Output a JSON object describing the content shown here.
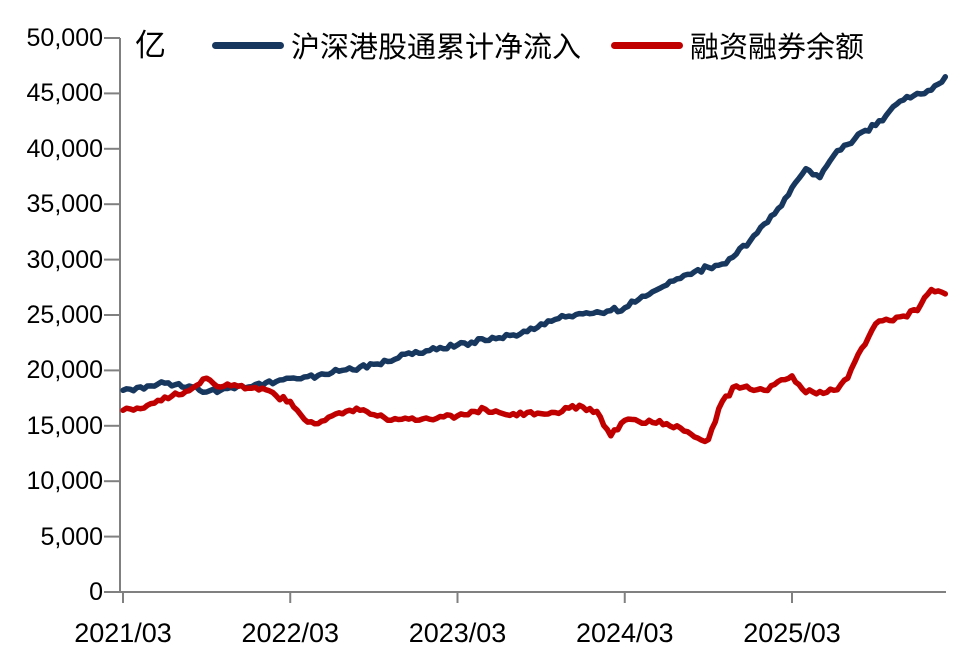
{
  "chart_data": {
    "type": "line",
    "title": "",
    "unit": "亿",
    "grid": false,
    "legend_position": "top",
    "axis_color": "#808080",
    "text_color": "#000000",
    "ylim": [
      0,
      50000
    ],
    "y_ticks": [
      0,
      5000,
      10000,
      15000,
      20000,
      25000,
      30000,
      35000,
      40000,
      45000,
      50000
    ],
    "x_start_label": "2021/03",
    "x_tick_labels": [
      "2021/03",
      "2022/03",
      "2023/03",
      "2024/03",
      "2025/03"
    ],
    "x_tick_month_offsets": [
      0,
      12,
      24,
      36,
      48
    ],
    "sampling": "monthly",
    "series": [
      {
        "name": "沪深港股通累计净流入",
        "color": "#17375e",
        "values": [
          18200,
          18450,
          18600,
          18850,
          18800,
          18500,
          18050,
          18200,
          18350,
          18500,
          18650,
          19000,
          19300,
          19400,
          19550,
          19800,
          20050,
          20300,
          20550,
          20800,
          21450,
          21700,
          21800,
          21950,
          22300,
          22550,
          22700,
          22950,
          23200,
          23500,
          24200,
          24600,
          24900,
          25100,
          25300,
          25400,
          25650,
          26400,
          27100,
          27700,
          28300,
          28900,
          29300,
          29600,
          30500,
          31700,
          33200,
          34600,
          36500,
          38200,
          37400,
          39400,
          40400,
          41500,
          42100,
          43400,
          44400,
          45000,
          45300,
          46500
        ]
      },
      {
        "name": "融资融券余额",
        "color": "#c00000",
        "values": [
          16400,
          16600,
          17000,
          17600,
          17800,
          18400,
          19300,
          18500,
          18700,
          18400,
          18400,
          17700,
          17200,
          15600,
          15200,
          15900,
          16300,
          16400,
          16000,
          15500,
          15600,
          15500,
          15600,
          15800,
          15900,
          16300,
          16500,
          16200,
          16100,
          16200,
          16100,
          16200,
          16600,
          16700,
          16300,
          14100,
          15500,
          15400,
          15300,
          15200,
          14800,
          14000,
          13750,
          17200,
          18600,
          18300,
          18200,
          19000,
          19500,
          18000,
          18100,
          18200,
          19300,
          22000,
          24200,
          24500,
          24900,
          25400,
          27300,
          26900
        ]
      }
    ]
  }
}
